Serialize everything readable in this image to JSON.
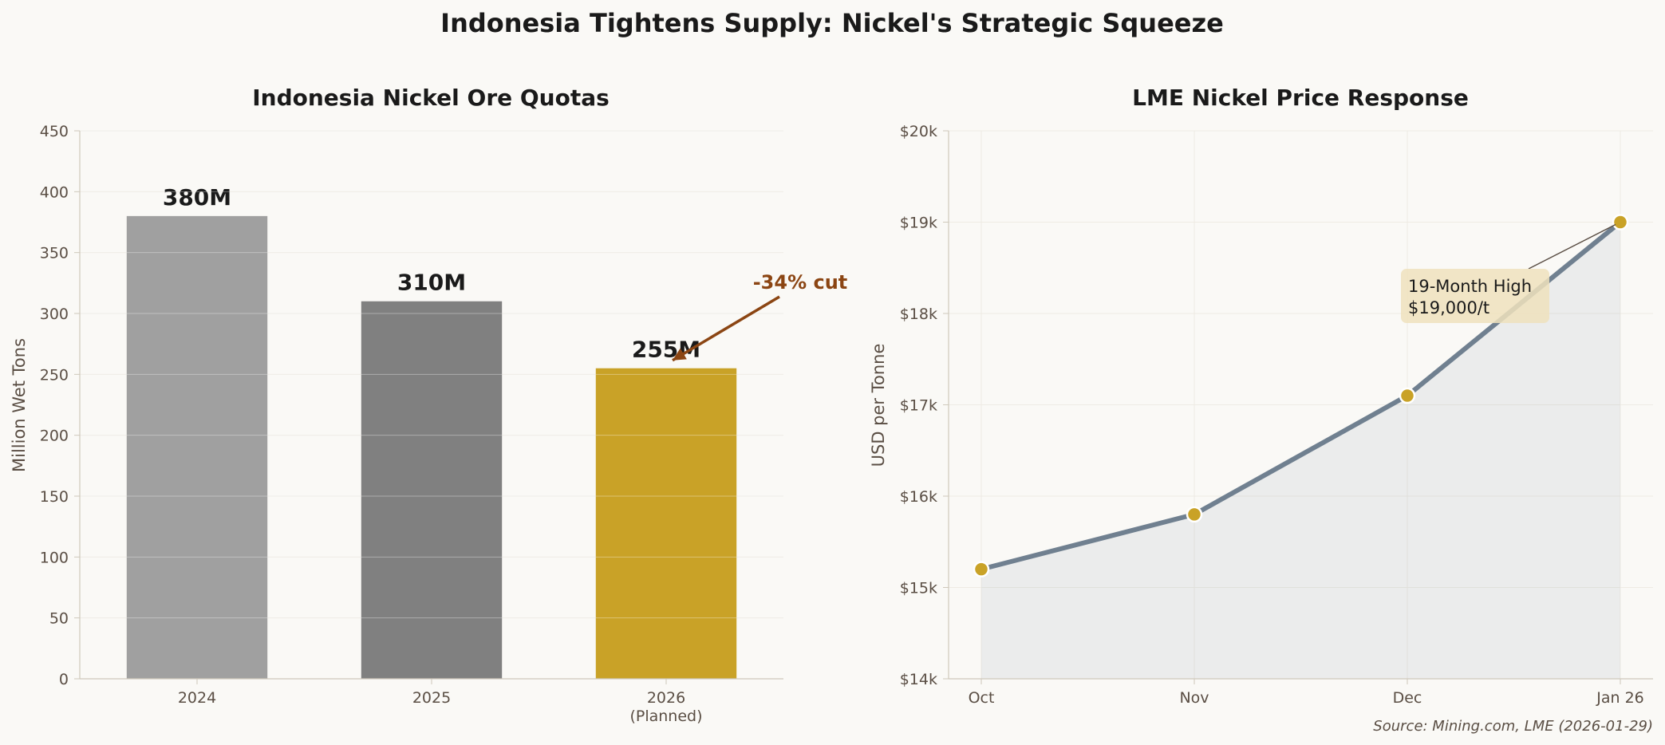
{
  "figure": {
    "title": "Indonesia Tightens Supply: Nickel's Strategic Squeeze",
    "source": "Source: Mining.com, LME (2026-01-29)"
  },
  "colors": {
    "background": "#faf9f6",
    "bar_2024": "#a0a0a0",
    "bar_2025": "#808080",
    "bar_2026": "#c9a227",
    "line": "#708090",
    "marker": "#c9a227",
    "cut_annotation": "#8b4513",
    "callout_box": "#efe2bd",
    "axis_text": "#5a4e44",
    "title_text": "#1a1a1a"
  },
  "chart_data": [
    {
      "type": "bar",
      "title": "Indonesia Nickel Ore Quotas",
      "xlabel": "",
      "ylabel": "Million Wet Tons",
      "categories": [
        "2024",
        "2025",
        "2026"
      ],
      "category_sublabels": [
        "",
        "",
        "(Planned)"
      ],
      "values": [
        380,
        310,
        255
      ],
      "data_labels": [
        "380M",
        "310M",
        "255M"
      ],
      "ylim": [
        0,
        450
      ],
      "yticks": [
        0,
        50,
        100,
        150,
        200,
        250,
        300,
        350,
        400,
        450
      ],
      "grid": true,
      "annotation": {
        "text": "-34% cut",
        "target_category": "2026",
        "target_value": 255
      }
    },
    {
      "type": "area",
      "title": "LME Nickel Price Response",
      "xlabel": "",
      "ylabel": "USD per Tonne",
      "x": [
        "Oct",
        "Nov",
        "Dec",
        "Jan 26"
      ],
      "values": [
        15200,
        15800,
        17100,
        19000
      ],
      "ylim": [
        14000,
        20000
      ],
      "yticks": [
        14000,
        15000,
        16000,
        17000,
        18000,
        19000,
        20000
      ],
      "ytick_labels": [
        "$14k",
        "$15k",
        "$16k",
        "$17k",
        "$18k",
        "$19k",
        "$20k"
      ],
      "grid": true,
      "annotation": {
        "lines": [
          "19-Month High",
          "$19,000/t"
        ],
        "target_x": "Jan 26",
        "target_value": 19000
      }
    }
  ]
}
